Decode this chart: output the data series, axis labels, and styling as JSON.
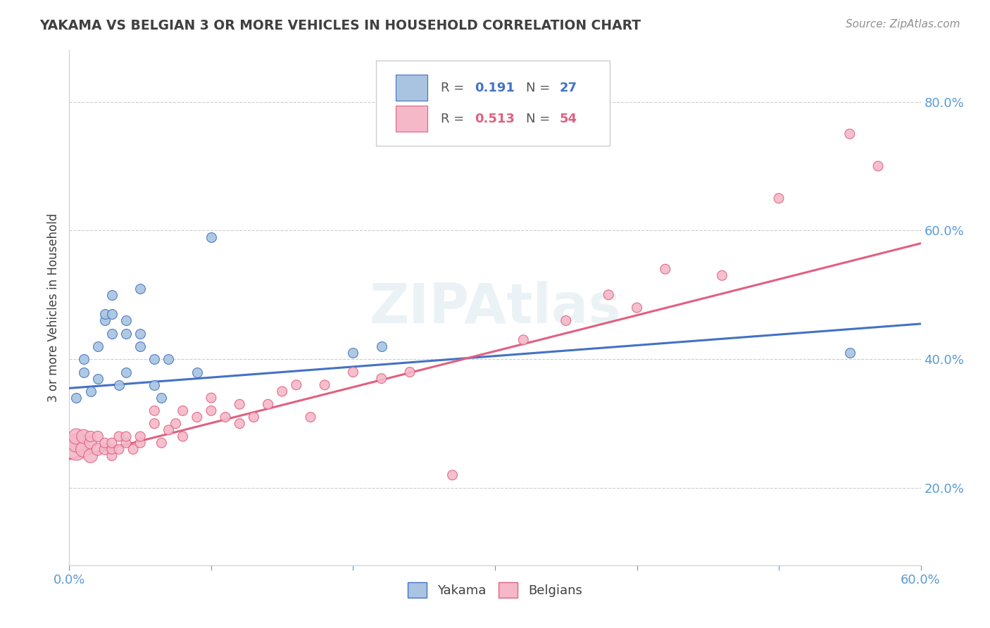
{
  "title": "YAKAMA VS BELGIAN 3 OR MORE VEHICLES IN HOUSEHOLD CORRELATION CHART",
  "source": "Source: ZipAtlas.com",
  "ylabel": "3 or more Vehicles in Household",
  "xlim": [
    0.0,
    0.6
  ],
  "ylim": [
    0.08,
    0.88
  ],
  "yticks": [
    0.2,
    0.4,
    0.6,
    0.8
  ],
  "xticks": [
    0.0,
    0.1,
    0.2,
    0.3,
    0.4,
    0.5,
    0.6
  ],
  "xtick_labels": [
    "0.0%",
    "",
    "",
    "",
    "",
    "",
    "60.0%"
  ],
  "ytick_labels": [
    "20.0%",
    "40.0%",
    "60.0%",
    "80.0%"
  ],
  "color_yakama": "#a8c4e0",
  "color_belgians": "#f4b8c8",
  "color_line_yakama": "#4472c4",
  "color_line_belgians": "#e06080",
  "color_title": "#404040",
  "color_source": "#909090",
  "watermark": "ZIPAtlas",
  "yakama_x": [
    0.005,
    0.01,
    0.01,
    0.015,
    0.02,
    0.02,
    0.025,
    0.025,
    0.03,
    0.03,
    0.03,
    0.035,
    0.04,
    0.04,
    0.04,
    0.05,
    0.05,
    0.05,
    0.06,
    0.06,
    0.065,
    0.07,
    0.09,
    0.1,
    0.2,
    0.22,
    0.55
  ],
  "yakama_y": [
    0.34,
    0.38,
    0.4,
    0.35,
    0.37,
    0.42,
    0.46,
    0.47,
    0.44,
    0.47,
    0.5,
    0.36,
    0.44,
    0.46,
    0.38,
    0.42,
    0.44,
    0.51,
    0.36,
    0.4,
    0.34,
    0.4,
    0.38,
    0.59,
    0.41,
    0.42,
    0.41
  ],
  "belgians_x": [
    0.005,
    0.005,
    0.005,
    0.01,
    0.01,
    0.015,
    0.015,
    0.015,
    0.02,
    0.02,
    0.025,
    0.025,
    0.03,
    0.03,
    0.03,
    0.035,
    0.035,
    0.04,
    0.04,
    0.045,
    0.05,
    0.05,
    0.06,
    0.06,
    0.065,
    0.07,
    0.075,
    0.08,
    0.08,
    0.09,
    0.1,
    0.1,
    0.11,
    0.12,
    0.12,
    0.13,
    0.14,
    0.15,
    0.16,
    0.17,
    0.18,
    0.2,
    0.22,
    0.24,
    0.27,
    0.32,
    0.35,
    0.38,
    0.4,
    0.42,
    0.46,
    0.5,
    0.55,
    0.57
  ],
  "belgians_y": [
    0.26,
    0.27,
    0.28,
    0.26,
    0.28,
    0.25,
    0.27,
    0.28,
    0.26,
    0.28,
    0.26,
    0.27,
    0.25,
    0.26,
    0.27,
    0.26,
    0.28,
    0.27,
    0.28,
    0.26,
    0.27,
    0.28,
    0.3,
    0.32,
    0.27,
    0.29,
    0.3,
    0.28,
    0.32,
    0.31,
    0.32,
    0.34,
    0.31,
    0.3,
    0.33,
    0.31,
    0.33,
    0.35,
    0.36,
    0.31,
    0.36,
    0.38,
    0.37,
    0.38,
    0.22,
    0.43,
    0.46,
    0.5,
    0.48,
    0.54,
    0.53,
    0.65,
    0.75,
    0.7
  ],
  "belgians_sizes": [
    500,
    350,
    250,
    250,
    200,
    200,
    150,
    120,
    150,
    120,
    120,
    100,
    100,
    100,
    100,
    100,
    100,
    100,
    100,
    100,
    100,
    100,
    100,
    100,
    100,
    100,
    100,
    100,
    100,
    100,
    100,
    100,
    100,
    100,
    100,
    100,
    100,
    100,
    100,
    100,
    100,
    100,
    100,
    100,
    100,
    100,
    100,
    100,
    100,
    100,
    100,
    100,
    100,
    100
  ],
  "trend_yakama_x0": 0.0,
  "trend_yakama_y0": 0.355,
  "trend_yakama_x1": 0.6,
  "trend_yakama_y1": 0.455,
  "trend_belgians_x0": 0.0,
  "trend_belgians_y0": 0.245,
  "trend_belgians_x1": 0.6,
  "trend_belgians_y1": 0.58
}
